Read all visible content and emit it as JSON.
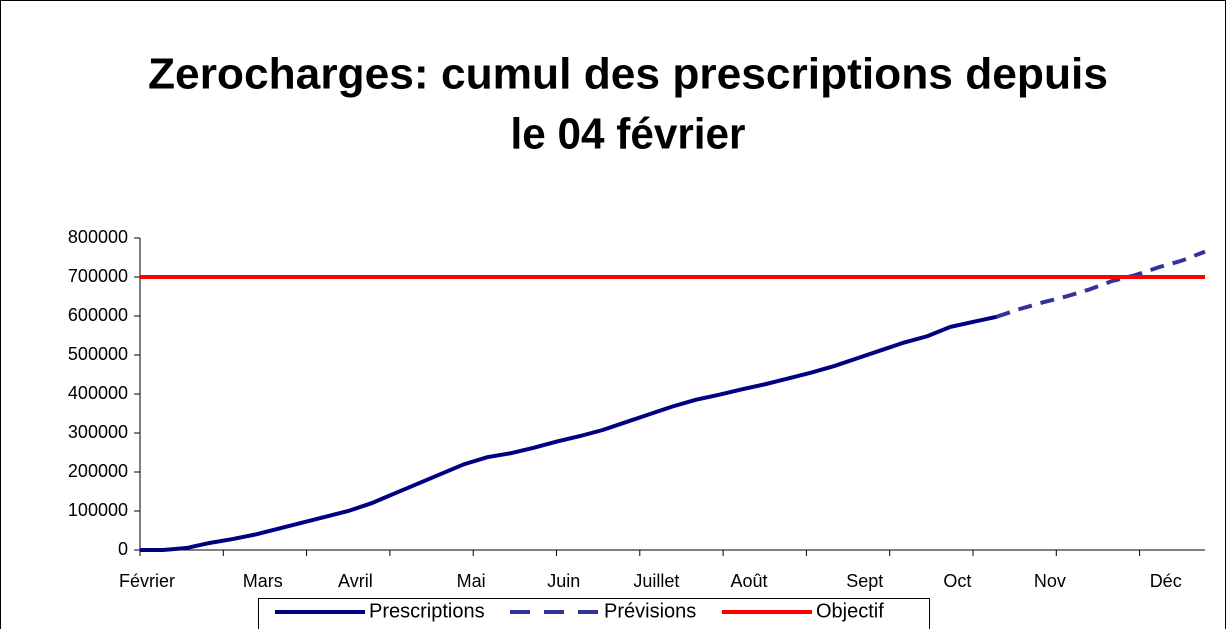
{
  "chart_data": {
    "type": "line",
    "title": [
      "Zerocharges: cumul des prescriptions depuis",
      "le 04 février"
    ],
    "categories": [
      "Février",
      null,
      null,
      null,
      null,
      "Mars",
      null,
      null,
      null,
      "Avril",
      null,
      null,
      null,
      null,
      "Mai",
      null,
      null,
      null,
      "Juin",
      null,
      null,
      null,
      "Juillet",
      null,
      null,
      null,
      "Août",
      null,
      null,
      null,
      null,
      "Sept",
      null,
      null,
      null,
      "Oct",
      null,
      null,
      null,
      "Nov",
      null,
      null,
      null,
      null,
      "Déc",
      null,
      null
    ],
    "series": [
      {
        "name": "Prescriptions",
        "color": "#000080",
        "style": "solid",
        "values": [
          0,
          0,
          5000,
          18000,
          28000,
          40000,
          55000,
          70000,
          85000,
          100000,
          120000,
          145000,
          170000,
          195000,
          220000,
          238000,
          248000,
          262000,
          278000,
          292000,
          308000,
          328000,
          348000,
          368000,
          385000,
          398000,
          412000,
          425000,
          440000,
          455000,
          472000,
          492000,
          512000,
          532000,
          548000,
          572000,
          585000,
          598000,
          null,
          null,
          null,
          null,
          null,
          null,
          null,
          null,
          null
        ]
      },
      {
        "name": "Prévisions",
        "color": "#333399",
        "style": "dashed",
        "values": [
          null,
          null,
          null,
          null,
          null,
          null,
          null,
          null,
          null,
          null,
          null,
          null,
          null,
          null,
          null,
          null,
          null,
          null,
          null,
          null,
          null,
          null,
          null,
          null,
          null,
          null,
          null,
          null,
          null,
          null,
          null,
          null,
          null,
          null,
          null,
          null,
          null,
          598000,
          618000,
          635000,
          650000,
          668000,
          690000,
          705000,
          725000,
          742000,
          765000
        ]
      },
      {
        "name": "Objectif",
        "color": "#ff0000",
        "style": "solid",
        "values": [
          700000,
          700000,
          700000,
          700000,
          700000,
          700000,
          700000,
          700000,
          700000,
          700000,
          700000,
          700000,
          700000,
          700000,
          700000,
          700000,
          700000,
          700000,
          700000,
          700000,
          700000,
          700000,
          700000,
          700000,
          700000,
          700000,
          700000,
          700000,
          700000,
          700000,
          700000,
          700000,
          700000,
          700000,
          700000,
          700000,
          700000,
          700000,
          700000,
          700000,
          700000,
          700000,
          700000,
          700000,
          700000,
          700000,
          700000
        ]
      }
    ],
    "ylim": [
      0,
      800000
    ],
    "yticks": [
      0,
      100000,
      200000,
      300000,
      400000,
      500000,
      600000,
      700000,
      800000
    ],
    "grid": false,
    "legend": "bottom"
  }
}
